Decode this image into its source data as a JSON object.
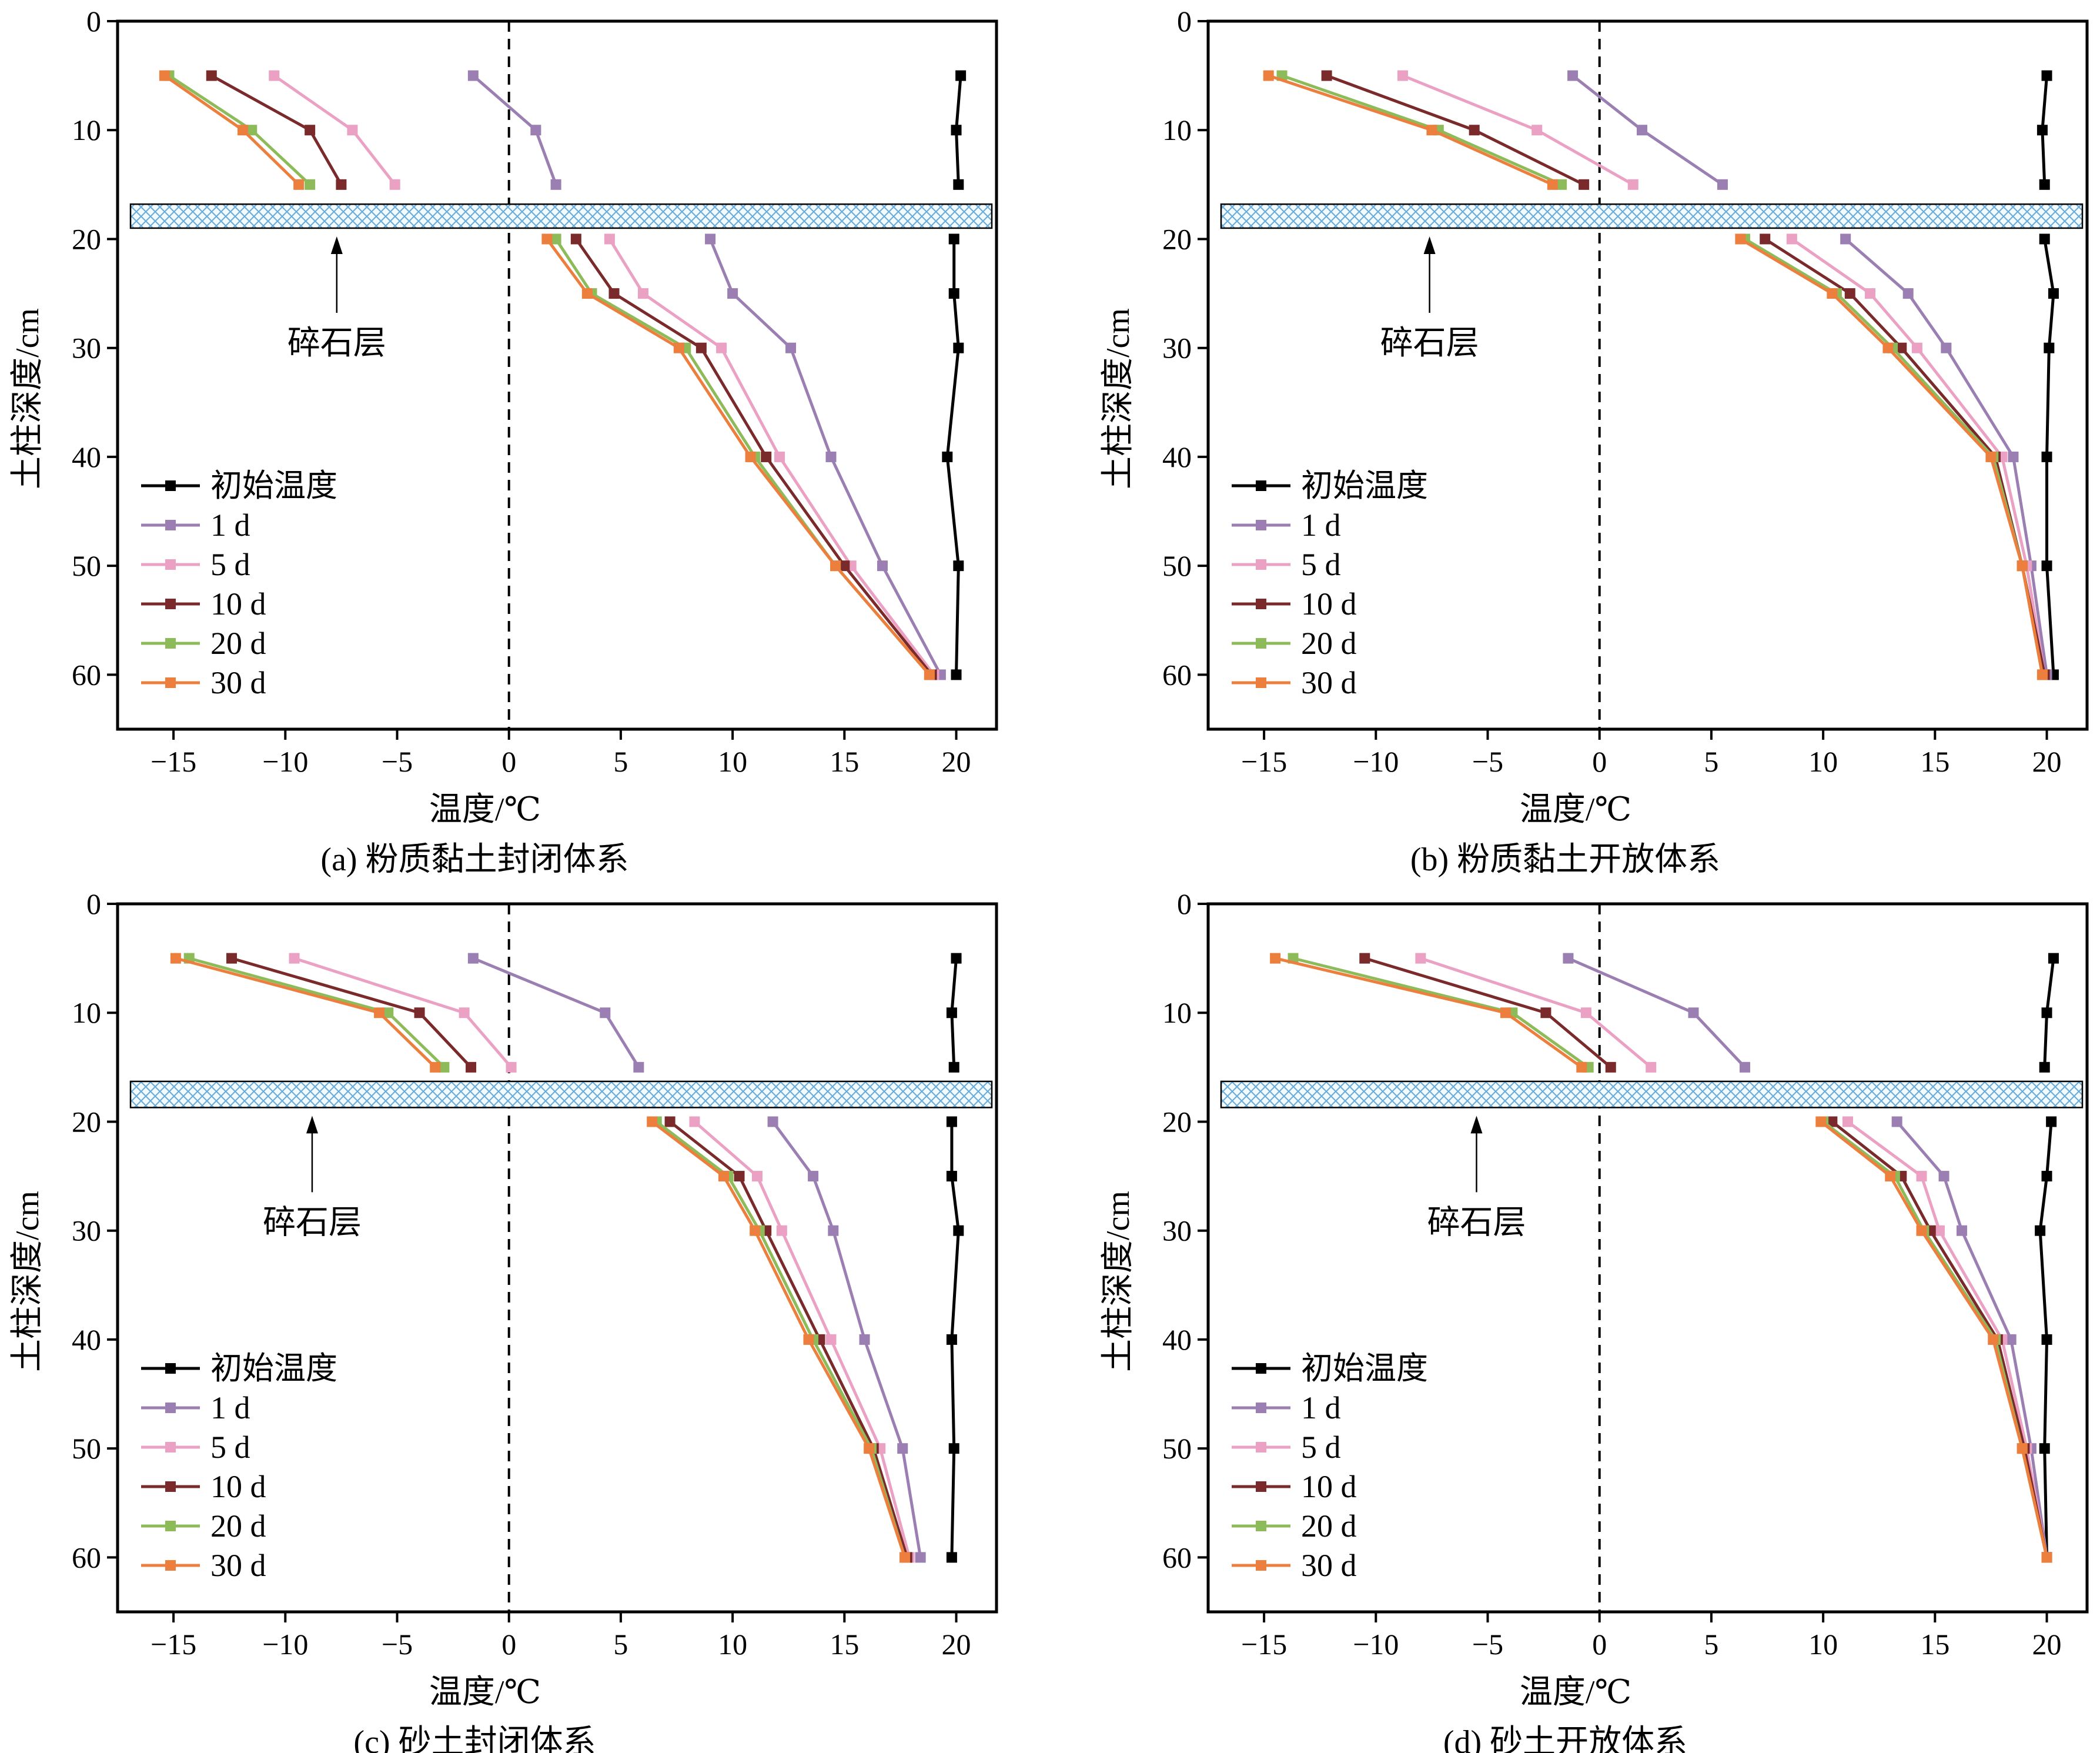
{
  "figure": {
    "xlabel": "温度/℃",
    "ylabel": "土柱深度/cm",
    "xticks": [
      "-15",
      "-10",
      "-5",
      "0",
      "5",
      "10",
      "15",
      "20"
    ],
    "yticks": [
      "0",
      "10",
      "20",
      "30",
      "40",
      "50",
      "60"
    ],
    "gravel_label": "碎石层",
    "legend": [
      "初始温度",
      "1 d",
      "5 d",
      "10 d",
      "20 d",
      "30 d"
    ],
    "colors": {
      "初始温度": "#000000",
      "1 d": "#9b7fb2",
      "5 d": "#eaa1c3",
      "10 d": "#7a2a2a",
      "20 d": "#8dbb5a",
      "30 d": "#ec7f3e",
      "gravel_hatch": "#6aaed6",
      "gravel_fill": "#f4f9fc"
    }
  },
  "chart_data": [
    {
      "type": "line",
      "caption": "(a) 粉质黏土封闭体系",
      "xlim": [
        -17.5,
        21.8
      ],
      "ylim": [
        65,
        0
      ],
      "y_inverted": true,
      "grid": false,
      "legend_position": "lower-left",
      "gravel_layer_depth": [
        16.8,
        19.0
      ],
      "gravel_arrow_x": -7.7,
      "series": [
        {
          "name": "初始温度",
          "points": [
            [
              20.2,
              5
            ],
            [
              20.0,
              10
            ],
            [
              20.1,
              15
            ],
            [
              19.9,
              20
            ],
            [
              19.9,
              25
            ],
            [
              20.1,
              30
            ],
            [
              19.6,
              40
            ],
            [
              20.1,
              50
            ],
            [
              20.0,
              60
            ]
          ]
        },
        {
          "name": "1 d",
          "points": [
            [
              -1.6,
              5
            ],
            [
              1.2,
              10
            ],
            [
              2.1,
              15
            ],
            [
              9.0,
              20
            ],
            [
              10.0,
              25
            ],
            [
              12.6,
              30
            ],
            [
              14.4,
              40
            ],
            [
              16.7,
              50
            ],
            [
              19.3,
              60
            ]
          ]
        },
        {
          "name": "5 d",
          "points": [
            [
              -10.5,
              5
            ],
            [
              -7.0,
              10
            ],
            [
              -5.1,
              15
            ],
            [
              4.5,
              20
            ],
            [
              6.0,
              25
            ],
            [
              9.5,
              30
            ],
            [
              12.1,
              40
            ],
            [
              15.3,
              50
            ],
            [
              19.0,
              60
            ]
          ]
        },
        {
          "name": "10 d",
          "points": [
            [
              -13.3,
              5
            ],
            [
              -8.9,
              10
            ],
            [
              -7.5,
              15
            ],
            [
              3.0,
              20
            ],
            [
              4.7,
              25
            ],
            [
              8.6,
              30
            ],
            [
              11.5,
              40
            ],
            [
              15.0,
              50
            ],
            [
              18.9,
              60
            ]
          ]
        },
        {
          "name": "20 d",
          "points": [
            [
              -15.2,
              5
            ],
            [
              -11.5,
              10
            ],
            [
              -8.9,
              15
            ],
            [
              2.1,
              20
            ],
            [
              3.7,
              25
            ],
            [
              7.9,
              30
            ],
            [
              11.0,
              40
            ],
            [
              14.6,
              50
            ],
            [
              18.8,
              60
            ]
          ]
        },
        {
          "name": "30 d",
          "points": [
            [
              -15.4,
              5
            ],
            [
              -11.9,
              10
            ],
            [
              -9.4,
              15
            ],
            [
              1.7,
              20
            ],
            [
              3.5,
              25
            ],
            [
              7.6,
              30
            ],
            [
              10.8,
              40
            ],
            [
              14.6,
              50
            ],
            [
              18.8,
              60
            ]
          ]
        }
      ]
    },
    {
      "type": "line",
      "caption": "(b) 粉质黏土开放体系",
      "xlim": [
        -17.5,
        21.8
      ],
      "ylim": [
        65,
        0
      ],
      "y_inverted": true,
      "grid": false,
      "legend_position": "lower-left",
      "gravel_layer_depth": [
        16.8,
        19.0
      ],
      "gravel_arrow_x": -7.6,
      "series": [
        {
          "name": "初始温度",
          "points": [
            [
              20.0,
              5
            ],
            [
              19.8,
              10
            ],
            [
              19.9,
              15
            ],
            [
              19.9,
              20
            ],
            [
              20.3,
              25
            ],
            [
              20.1,
              30
            ],
            [
              20.0,
              40
            ],
            [
              20.0,
              50
            ],
            [
              20.3,
              60
            ]
          ]
        },
        {
          "name": "1 d",
          "points": [
            [
              -1.2,
              5
            ],
            [
              1.9,
              10
            ],
            [
              5.5,
              15
            ],
            [
              11.0,
              20
            ],
            [
              13.8,
              25
            ],
            [
              15.5,
              30
            ],
            [
              18.5,
              40
            ],
            [
              19.3,
              50
            ],
            [
              20.0,
              60
            ]
          ]
        },
        {
          "name": "5 d",
          "points": [
            [
              -8.8,
              5
            ],
            [
              -2.8,
              10
            ],
            [
              1.5,
              15
            ],
            [
              8.6,
              20
            ],
            [
              12.1,
              25
            ],
            [
              14.2,
              30
            ],
            [
              18.0,
              40
            ],
            [
              19.1,
              50
            ],
            [
              19.9,
              60
            ]
          ]
        },
        {
          "name": "10 d",
          "points": [
            [
              -12.2,
              5
            ],
            [
              -5.6,
              10
            ],
            [
              -0.7,
              15
            ],
            [
              7.4,
              20
            ],
            [
              11.2,
              25
            ],
            [
              13.5,
              30
            ],
            [
              17.7,
              40
            ],
            [
              18.9,
              50
            ],
            [
              19.9,
              60
            ]
          ]
        },
        {
          "name": "20 d",
          "points": [
            [
              -14.2,
              5
            ],
            [
              -7.2,
              10
            ],
            [
              -1.7,
              15
            ],
            [
              6.5,
              20
            ],
            [
              10.6,
              25
            ],
            [
              13.1,
              30
            ],
            [
              17.6,
              40
            ],
            [
              18.9,
              50
            ],
            [
              19.8,
              60
            ]
          ]
        },
        {
          "name": "30 d",
          "points": [
            [
              -14.8,
              5
            ],
            [
              -7.5,
              10
            ],
            [
              -2.1,
              15
            ],
            [
              6.3,
              20
            ],
            [
              10.4,
              25
            ],
            [
              12.9,
              30
            ],
            [
              17.5,
              40
            ],
            [
              18.9,
              50
            ],
            [
              19.8,
              60
            ]
          ]
        }
      ]
    },
    {
      "type": "line",
      "caption": "(c) 砂土封闭体系",
      "xlim": [
        -17.5,
        21.8
      ],
      "ylim": [
        65,
        0
      ],
      "y_inverted": true,
      "grid": false,
      "legend_position": "lower-left",
      "gravel_layer_depth": [
        16.3,
        18.7
      ],
      "gravel_arrow_x": -8.8,
      "series": [
        {
          "name": "初始温度",
          "points": [
            [
              20.0,
              5
            ],
            [
              19.8,
              10
            ],
            [
              19.9,
              15
            ],
            [
              19.8,
              20
            ],
            [
              19.8,
              25
            ],
            [
              20.1,
              30
            ],
            [
              19.8,
              40
            ],
            [
              19.9,
              50
            ],
            [
              19.8,
              60
            ]
          ]
        },
        {
          "name": "1 d",
          "points": [
            [
              -1.6,
              5
            ],
            [
              4.3,
              10
            ],
            [
              5.8,
              15
            ],
            [
              11.8,
              20
            ],
            [
              13.6,
              25
            ],
            [
              14.5,
              30
            ],
            [
              15.9,
              40
            ],
            [
              17.6,
              50
            ],
            [
              18.4,
              60
            ]
          ]
        },
        {
          "name": "5 d",
          "points": [
            [
              -9.6,
              5
            ],
            [
              -2.0,
              10
            ],
            [
              0.1,
              15
            ],
            [
              8.3,
              20
            ],
            [
              11.1,
              25
            ],
            [
              12.2,
              30
            ],
            [
              14.4,
              40
            ],
            [
              16.6,
              50
            ],
            [
              17.9,
              60
            ]
          ]
        },
        {
          "name": "10 d",
          "points": [
            [
              -12.4,
              5
            ],
            [
              -4.0,
              10
            ],
            [
              -1.7,
              15
            ],
            [
              7.2,
              20
            ],
            [
              10.3,
              25
            ],
            [
              11.5,
              30
            ],
            [
              13.9,
              40
            ],
            [
              16.3,
              50
            ],
            [
              17.8,
              60
            ]
          ]
        },
        {
          "name": "20 d",
          "points": [
            [
              -14.3,
              5
            ],
            [
              -5.4,
              10
            ],
            [
              -2.9,
              15
            ],
            [
              6.6,
              20
            ],
            [
              9.8,
              25
            ],
            [
              11.2,
              30
            ],
            [
              13.6,
              40
            ],
            [
              16.2,
              50
            ],
            [
              17.7,
              60
            ]
          ]
        },
        {
          "name": "30 d",
          "points": [
            [
              -14.9,
              5
            ],
            [
              -5.8,
              10
            ],
            [
              -3.3,
              15
            ],
            [
              6.4,
              20
            ],
            [
              9.6,
              25
            ],
            [
              11.0,
              30
            ],
            [
              13.4,
              40
            ],
            [
              16.1,
              50
            ],
            [
              17.7,
              60
            ]
          ]
        }
      ]
    },
    {
      "type": "line",
      "caption": "(d) 砂土开放体系",
      "xlim": [
        -17.5,
        21.8
      ],
      "ylim": [
        65,
        0
      ],
      "y_inverted": true,
      "grid": false,
      "legend_position": "lower-left",
      "gravel_layer_depth": [
        16.3,
        18.7
      ],
      "gravel_arrow_x": -5.5,
      "series": [
        {
          "name": "初始温度",
          "points": [
            [
              20.3,
              5
            ],
            [
              20.0,
              10
            ],
            [
              19.9,
              15
            ],
            [
              20.2,
              20
            ],
            [
              20.0,
              25
            ],
            [
              19.7,
              30
            ],
            [
              20.0,
              40
            ],
            [
              19.9,
              50
            ],
            [
              20.0,
              60
            ]
          ]
        },
        {
          "name": "1 d",
          "points": [
            [
              -1.4,
              5
            ],
            [
              4.2,
              10
            ],
            [
              6.5,
              15
            ],
            [
              13.3,
              20
            ],
            [
              15.4,
              25
            ],
            [
              16.2,
              30
            ],
            [
              18.4,
              40
            ],
            [
              19.3,
              50
            ],
            [
              20.0,
              60
            ]
          ]
        },
        {
          "name": "5 d",
          "points": [
            [
              -8.0,
              5
            ],
            [
              -0.6,
              10
            ],
            [
              2.3,
              15
            ],
            [
              11.1,
              20
            ],
            [
              14.4,
              25
            ],
            [
              15.2,
              30
            ],
            [
              18.0,
              40
            ],
            [
              19.1,
              50
            ],
            [
              20.0,
              60
            ]
          ]
        },
        {
          "name": "10 d",
          "points": [
            [
              -10.5,
              5
            ],
            [
              -2.4,
              10
            ],
            [
              0.5,
              15
            ],
            [
              10.4,
              20
            ],
            [
              13.5,
              25
            ],
            [
              14.8,
              30
            ],
            [
              17.8,
              40
            ],
            [
              19.0,
              50
            ],
            [
              20.0,
              60
            ]
          ]
        },
        {
          "name": "20 d",
          "points": [
            [
              -13.7,
              5
            ],
            [
              -3.9,
              10
            ],
            [
              -0.5,
              15
            ],
            [
              10.0,
              20
            ],
            [
              13.2,
              25
            ],
            [
              14.5,
              30
            ],
            [
              17.7,
              40
            ],
            [
              18.9,
              50
            ],
            [
              20.0,
              60
            ]
          ]
        },
        {
          "name": "30 d",
          "points": [
            [
              -14.5,
              5
            ],
            [
              -4.2,
              10
            ],
            [
              -0.8,
              15
            ],
            [
              9.9,
              20
            ],
            [
              13.0,
              25
            ],
            [
              14.4,
              30
            ],
            [
              17.6,
              40
            ],
            [
              18.9,
              50
            ],
            [
              20.0,
              60
            ]
          ]
        }
      ]
    }
  ]
}
